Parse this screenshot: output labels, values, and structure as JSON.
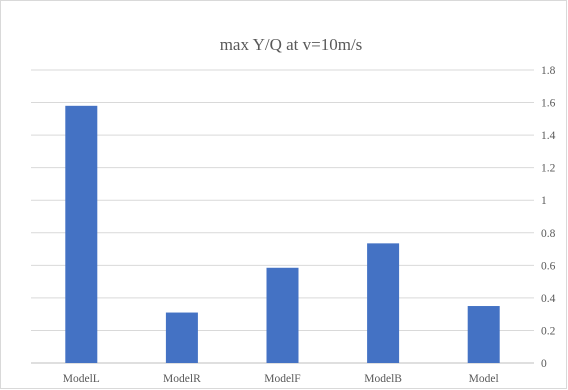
{
  "chart_data": {
    "type": "bar",
    "title": "max Y/Q at v=10m/s",
    "categories": [
      "ModelL",
      "ModelR",
      "ModelF",
      "ModelB",
      "Model"
    ],
    "values": [
      1.58,
      0.31,
      0.585,
      0.735,
      0.35
    ],
    "y_ticks": [
      "0",
      "0.2",
      "0.4",
      "0.6",
      "0.8",
      "1",
      "1.2",
      "1.4",
      "1.6",
      "1.8"
    ],
    "ylim": [
      0,
      1.8
    ],
    "ytick_step": 0.2,
    "y_axis_side": "right",
    "grid": true,
    "legend": "none",
    "bar_color": "#4472c4"
  }
}
